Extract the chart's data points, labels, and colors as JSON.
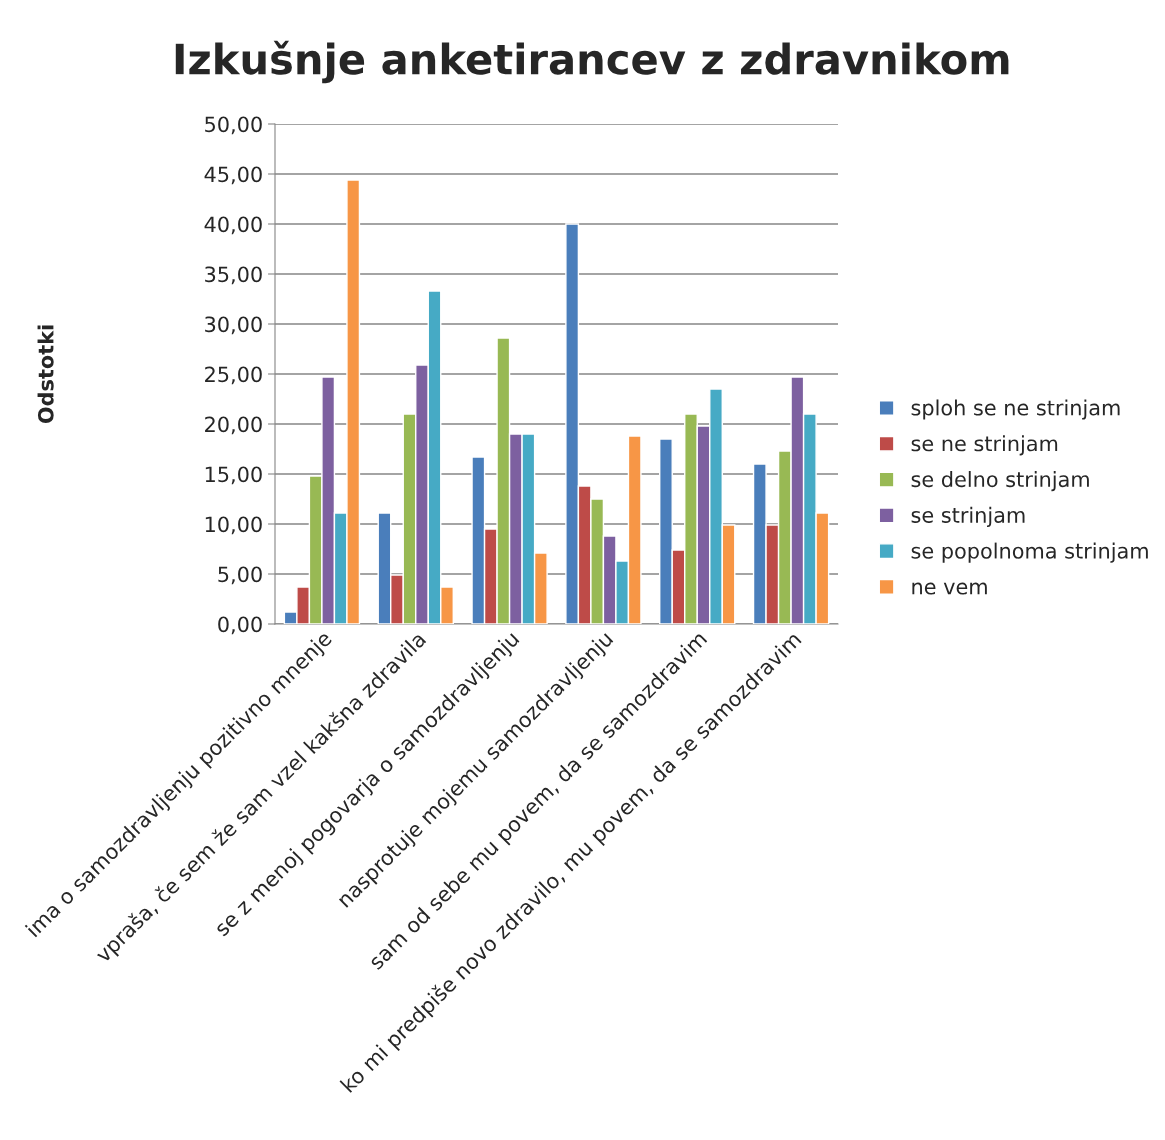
{
  "chart_data": {
    "type": "bar",
    "title": "Izkušnje anketirancev z zdravnikom",
    "ylabel": "Odstotki",
    "categories": [
      "ima o samozdravljenju pozitivno mnenje",
      "vpraša, če sem že sam vzel kakšna zdravila",
      "se z menoj pogovarja o samozdravljenju",
      "nasprotuje mojemu samozdravljenju",
      "sam od sebe mu povem, da se samozdravim",
      "ko mi predpiše novo zdravilo, mu povem, da se samozdravim"
    ],
    "series": [
      {
        "name": "sploh se ne strinjam",
        "color": "#4a7ebb",
        "values": [
          1.2,
          11.1,
          16.7,
          40.0,
          18.5,
          16.0
        ]
      },
      {
        "name": "se ne strinjam",
        "color": "#be4b48",
        "values": [
          3.7,
          4.9,
          9.5,
          13.8,
          7.4,
          9.9
        ]
      },
      {
        "name": "se delno strinjam",
        "color": "#98b954",
        "values": [
          14.8,
          21.0,
          28.6,
          12.5,
          21.0,
          17.3
        ]
      },
      {
        "name": "se strinjam",
        "color": "#7d60a0",
        "values": [
          24.7,
          25.9,
          19.0,
          8.8,
          19.8,
          24.7
        ]
      },
      {
        "name": "se popolnoma strinjam",
        "color": "#46aac5",
        "values": [
          11.1,
          33.3,
          19.0,
          6.3,
          23.5,
          21.0
        ]
      },
      {
        "name": "ne vem",
        "color": "#f79646",
        "values": [
          44.4,
          3.7,
          7.1,
          18.8,
          9.9,
          11.1
        ]
      }
    ],
    "ylim": [
      0,
      50
    ],
    "yticks": [
      {
        "value": 0,
        "label": "0,00"
      },
      {
        "value": 5,
        "label": "5,00"
      },
      {
        "value": 10,
        "label": "10,00"
      },
      {
        "value": 15,
        "label": "15,00"
      },
      {
        "value": 20,
        "label": "20,00"
      },
      {
        "value": 25,
        "label": "25,00"
      },
      {
        "value": 30,
        "label": "30,00"
      },
      {
        "value": 35,
        "label": "35,00"
      },
      {
        "value": 40,
        "label": "40,00"
      },
      {
        "value": 45,
        "label": "45,00"
      },
      {
        "value": 50,
        "label": "50,00"
      }
    ],
    "grid": "y",
    "legend": "right"
  }
}
